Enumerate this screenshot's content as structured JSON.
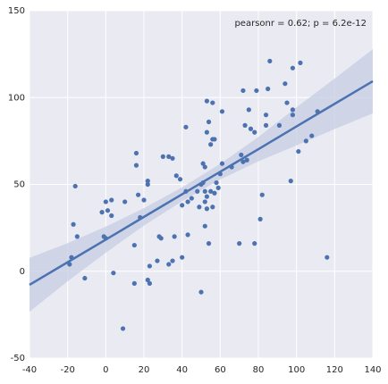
{
  "chart_data": {
    "type": "scatter",
    "annotation": "pearsonr = 0.62; p = 6.2e-12",
    "color": "#4c72b0",
    "band_color": "#c6cde3",
    "grid": true,
    "xlim": [
      -40,
      140
    ],
    "xticks": [
      -40,
      -20,
      0,
      20,
      40,
      60,
      80,
      100,
      120,
      140
    ],
    "ylim": [
      -50,
      150
    ],
    "yticks": [
      -50,
      0,
      50,
      100,
      150
    ],
    "x": [
      86,
      98,
      102,
      94,
      72,
      79,
      85,
      111,
      98,
      98,
      95,
      53,
      56,
      75,
      84,
      91,
      84,
      76,
      78,
      73,
      105,
      108,
      101,
      42,
      54,
      53,
      56,
      57,
      55,
      61,
      71,
      72,
      74,
      61,
      66,
      51,
      52,
      35,
      33,
      30,
      16,
      16,
      37,
      39,
      22,
      22,
      17,
      20,
      10,
      0,
      3,
      42,
      45,
      43,
      50,
      51,
      48,
      52,
      55,
      57,
      59,
      58,
      60,
      53,
      56,
      52,
      49,
      53,
      40,
      82,
      81,
      52,
      54,
      70,
      78,
      43,
      36,
      28,
      29,
      18,
      15,
      -16,
      -2,
      1,
      3,
      -1,
      0,
      -17,
      -15,
      -18,
      -19,
      -11,
      4,
      15,
      22,
      23,
      23,
      33,
      35,
      27,
      40,
      50,
      9,
      116,
      97
    ],
    "y": [
      121,
      117,
      120,
      108,
      104,
      104,
      105,
      92,
      93,
      90,
      97,
      98,
      97,
      93,
      90,
      84,
      84,
      82,
      80,
      84,
      75,
      78,
      69,
      83,
      86,
      80,
      76,
      76,
      73,
      92,
      67,
      63,
      64,
      62,
      60,
      62,
      60,
      65,
      66,
      66,
      68,
      61,
      55,
      53,
      52,
      50,
      44,
      41,
      40,
      40,
      41,
      46,
      42,
      40,
      50,
      51,
      46,
      46,
      46,
      45,
      48,
      51,
      56,
      43,
      37,
      40,
      37,
      36,
      38,
      44,
      30,
      26,
      16,
      16,
      16,
      21,
      20,
      20,
      19,
      31,
      15,
      49,
      34,
      35,
      32,
      20,
      19,
      27,
      20,
      8,
      4,
      -4,
      -1,
      -7,
      -5,
      -7,
      3,
      4,
      6,
      6,
      8,
      -12,
      -33,
      8,
      52
    ],
    "regression": {
      "x": [
        -40,
        -20,
        0,
        20,
        40,
        60,
        80,
        100,
        120,
        140
      ],
      "y": [
        -7.8,
        5.2,
        18.2,
        31.3,
        44.3,
        57.3,
        70.3,
        83.4,
        96.4,
        109.4
      ],
      "lower": [
        -23.3,
        -5.8,
        10.7,
        26.3,
        40.3,
        52.8,
        63.3,
        72.4,
        81.9,
        90.9
      ],
      "upper": [
        7.7,
        16.2,
        25.7,
        36.3,
        48.3,
        61.8,
        77.3,
        94.4,
        110.9,
        127.9
      ]
    }
  }
}
